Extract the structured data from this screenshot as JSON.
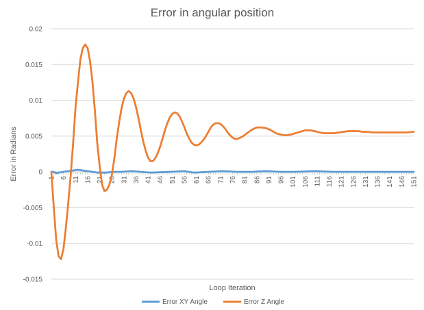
{
  "chart_data": {
    "type": "line",
    "title": "Error in angular position",
    "xlabel": "Loop Iteration",
    "ylabel": "Error in Radians",
    "ylim": [
      -0.015,
      0.02
    ],
    "yticks": [
      0.02,
      0.015,
      0.01,
      0.005,
      0,
      -0.005,
      -0.01,
      -0.015
    ],
    "ytick_labels": [
      "0.02",
      "0.015",
      "0.01",
      "0.005",
      "0",
      "-0.005",
      "-0.01",
      "-0.015"
    ],
    "xlim": [
      1,
      151
    ],
    "xticks": [
      1,
      6,
      11,
      16,
      21,
      26,
      31,
      36,
      41,
      46,
      51,
      56,
      61,
      66,
      71,
      76,
      81,
      86,
      91,
      96,
      101,
      106,
      111,
      116,
      121,
      126,
      131,
      136,
      141,
      146,
      151
    ],
    "grid": true,
    "legend_position": "bottom",
    "series": [
      {
        "name": "Error XY Angle",
        "color": "#5b9bd5",
        "points": [
          [
            1,
            0
          ],
          [
            2,
            0
          ],
          [
            3,
            -0.0002
          ],
          [
            4,
            -0.0001
          ],
          [
            6,
            0
          ],
          [
            8,
            0.0001
          ],
          [
            10,
            0.0002
          ],
          [
            12,
            0.0003
          ],
          [
            14,
            0.0002
          ],
          [
            16,
            0.0001
          ],
          [
            18,
            0
          ],
          [
            20,
            -0.0001
          ],
          [
            22,
            -0.0001
          ],
          [
            24,
            -0.0001
          ],
          [
            26,
            0
          ],
          [
            30,
            0
          ],
          [
            34,
            0.0001
          ],
          [
            38,
            0
          ],
          [
            42,
            -0.0001
          ],
          [
            50,
            0
          ],
          [
            56,
            0.0001
          ],
          [
            60,
            -0.0001
          ],
          [
            66,
            0
          ],
          [
            72,
            0.0001
          ],
          [
            78,
            0
          ],
          [
            84,
            0
          ],
          [
            90,
            0.0001
          ],
          [
            96,
            0
          ],
          [
            102,
            0
          ],
          [
            110,
            0.0001
          ],
          [
            118,
            0
          ],
          [
            126,
            0
          ],
          [
            136,
            0
          ],
          [
            146,
            0
          ],
          [
            151,
            0
          ]
        ]
      },
      {
        "name": "Error Z Angle",
        "color": "#ed7d31",
        "points": [
          [
            1,
            0
          ],
          [
            2,
            -0.005
          ],
          [
            3,
            -0.0095
          ],
          [
            4,
            -0.0118
          ],
          [
            5,
            -0.0122
          ],
          [
            6,
            -0.0108
          ],
          [
            7,
            -0.0078
          ],
          [
            8,
            -0.0043
          ],
          [
            9,
            -0.0005
          ],
          [
            10,
            0.004
          ],
          [
            11,
            0.009
          ],
          [
            12,
            0.0125
          ],
          [
            13,
            0.0157
          ],
          [
            14,
            0.0173
          ],
          [
            15,
            0.0178
          ],
          [
            16,
            0.0173
          ],
          [
            17,
            0.0155
          ],
          [
            18,
            0.0126
          ],
          [
            19,
            0.0086
          ],
          [
            20,
            0.004
          ],
          [
            21,
            0.0008
          ],
          [
            22,
            -0.0018
          ],
          [
            23,
            -0.0027
          ],
          [
            24,
            -0.0025
          ],
          [
            25,
            -0.0018
          ],
          [
            26,
            -0.0005
          ],
          [
            27,
            0.0017
          ],
          [
            28,
            0.0045
          ],
          [
            29,
            0.0068
          ],
          [
            30,
            0.0088
          ],
          [
            31,
            0.0102
          ],
          [
            32,
            0.011
          ],
          [
            33,
            0.0113
          ],
          [
            34,
            0.011
          ],
          [
            35,
            0.0103
          ],
          [
            36,
            0.0091
          ],
          [
            37,
            0.0076
          ],
          [
            38,
            0.0059
          ],
          [
            39,
            0.0043
          ],
          [
            40,
            0.003
          ],
          [
            41,
            0.002
          ],
          [
            42,
            0.0015
          ],
          [
            43,
            0.0015
          ],
          [
            44,
            0.0019
          ],
          [
            45,
            0.0026
          ],
          [
            46,
            0.0035
          ],
          [
            47,
            0.0046
          ],
          [
            48,
            0.0058
          ],
          [
            49,
            0.0068
          ],
          [
            50,
            0.0076
          ],
          [
            51,
            0.0081
          ],
          [
            52,
            0.0083
          ],
          [
            53,
            0.0082
          ],
          [
            54,
            0.0078
          ],
          [
            55,
            0.0071
          ],
          [
            56,
            0.0063
          ],
          [
            57,
            0.0054
          ],
          [
            58,
            0.0047
          ],
          [
            59,
            0.0041
          ],
          [
            60,
            0.0038
          ],
          [
            61,
            0.0037
          ],
          [
            62,
            0.0038
          ],
          [
            63,
            0.0041
          ],
          [
            64,
            0.0045
          ],
          [
            65,
            0.005
          ],
          [
            66,
            0.0056
          ],
          [
            67,
            0.0062
          ],
          [
            68,
            0.0066
          ],
          [
            69,
            0.0068
          ],
          [
            70,
            0.0068
          ],
          [
            71,
            0.0067
          ],
          [
            72,
            0.0064
          ],
          [
            73,
            0.006
          ],
          [
            74,
            0.0055
          ],
          [
            75,
            0.0051
          ],
          [
            76,
            0.0048
          ],
          [
            77,
            0.0046
          ],
          [
            78,
            0.0046
          ],
          [
            80,
            0.0049
          ],
          [
            82,
            0.0054
          ],
          [
            84,
            0.0059
          ],
          [
            86,
            0.0062
          ],
          [
            88,
            0.0062
          ],
          [
            90,
            0.0061
          ],
          [
            92,
            0.0058
          ],
          [
            94,
            0.0054
          ],
          [
            96,
            0.0052
          ],
          [
            98,
            0.0051
          ],
          [
            100,
            0.0052
          ],
          [
            102,
            0.0054
          ],
          [
            104,
            0.0056
          ],
          [
            106,
            0.0058
          ],
          [
            108,
            0.0058
          ],
          [
            110,
            0.0057
          ],
          [
            112,
            0.0055
          ],
          [
            114,
            0.0054
          ],
          [
            116,
            0.0054
          ],
          [
            118,
            0.0054
          ],
          [
            120,
            0.0055
          ],
          [
            122,
            0.0056
          ],
          [
            124,
            0.0057
          ],
          [
            126,
            0.0057
          ],
          [
            128,
            0.0057
          ],
          [
            130,
            0.0056
          ],
          [
            132,
            0.0056
          ],
          [
            134,
            0.0055
          ],
          [
            136,
            0.0055
          ],
          [
            140,
            0.0055
          ],
          [
            144,
            0.0055
          ],
          [
            148,
            0.0055
          ],
          [
            151,
            0.0056
          ]
        ]
      }
    ]
  }
}
